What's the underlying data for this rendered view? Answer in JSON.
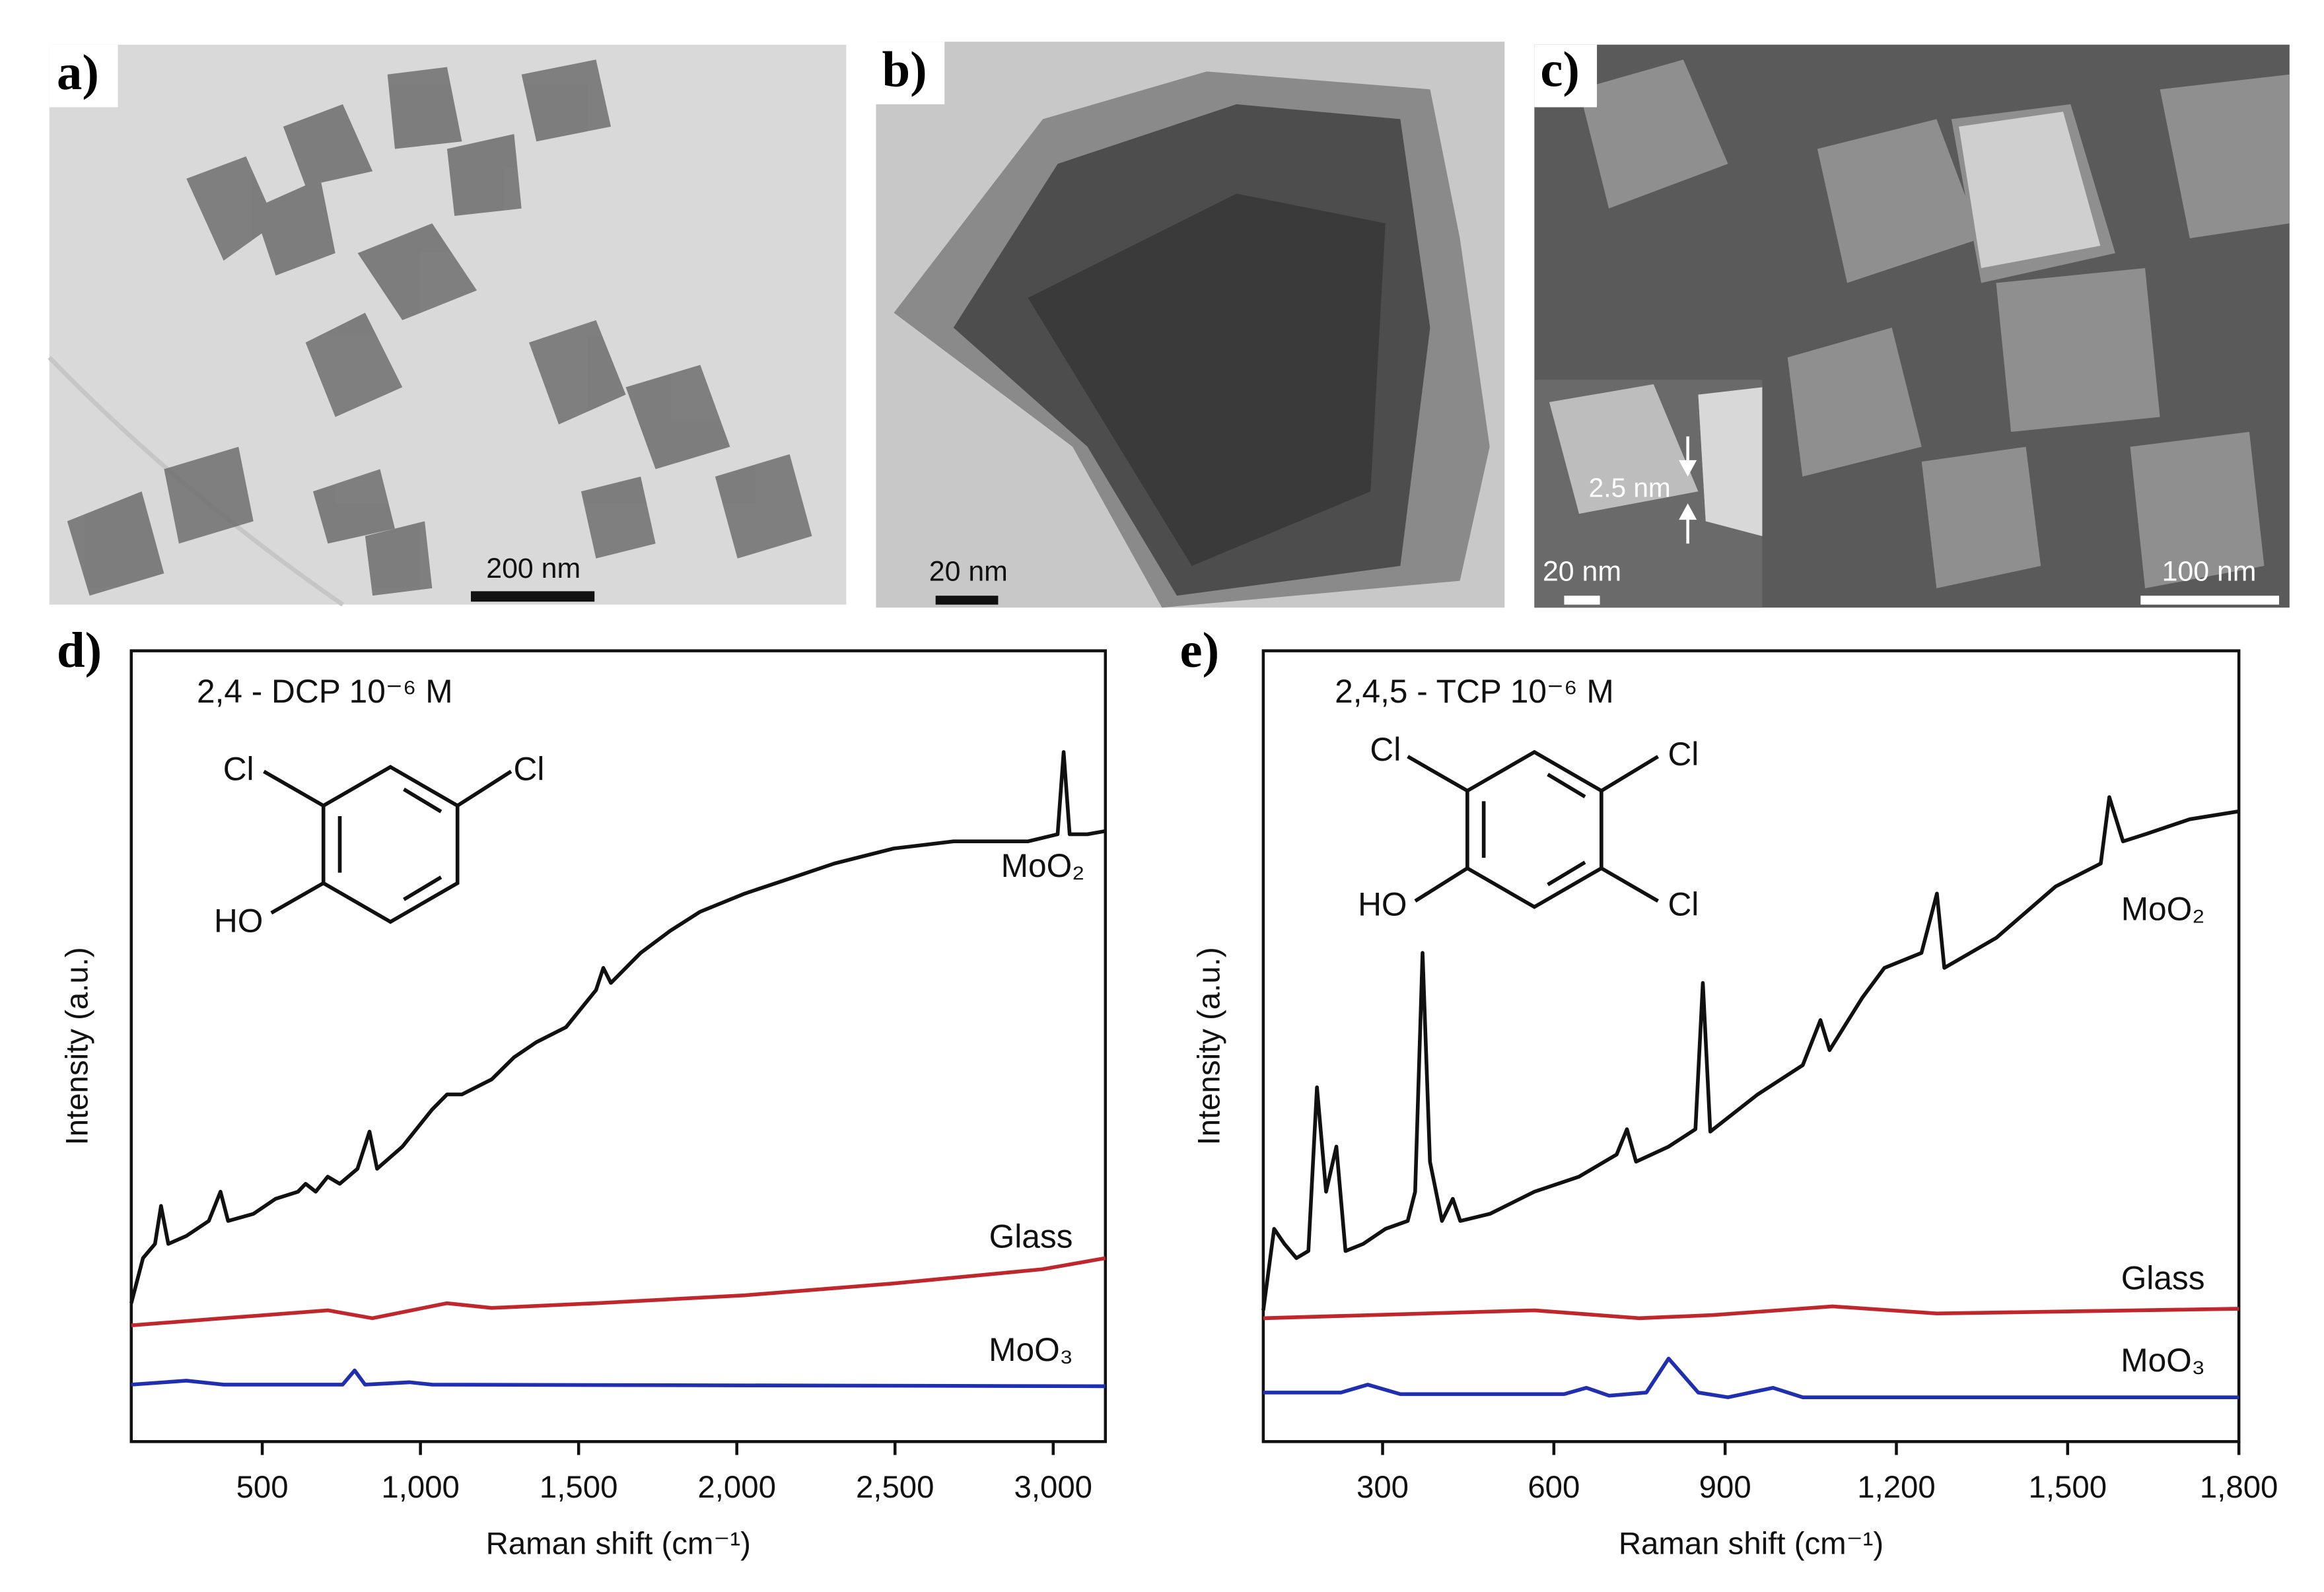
{
  "panels": [
    {
      "label": "a)",
      "scale_bar": "200 nm"
    },
    {
      "label": "b)",
      "scale_bar": "20 nm"
    },
    {
      "label": "c)",
      "scale_bar": "100 nm",
      "inset_scale_bar": "20 nm",
      "inset_annotation": "2.5 nm"
    }
  ],
  "chart_data": [
    {
      "type": "line",
      "label": "d)",
      "annotation": "2,4 - DCP 10⁻⁶ M",
      "structure_labels": [
        "Cl",
        "Cl",
        "HO"
      ],
      "x_label": "Raman shift (cm⁻¹)",
      "y_label": "Intensity (a.u.)",
      "xlim": [
        86,
        3165
      ],
      "ylim": [
        0,
        100
      ],
      "xticks": [
        500,
        {
          "value": 1000,
          "label": "1,000"
        },
        {
          "value": 1500,
          "label": "1,500"
        },
        {
          "value": 2000,
          "label": "2,000"
        },
        {
          "value": 2500,
          "label": "2,500"
        },
        {
          "value": 3000,
          "label": "3,000"
        }
      ],
      "series": [
        {
          "name": "MoO₂",
          "color": "#111111",
          "x": [
            86,
            123,
            161,
            180,
            203,
            260,
            331,
            368,
            392,
            472,
            542,
            613,
            637,
            669,
            707,
            745,
            801,
            839,
            863,
            943,
            1037,
            1084,
            1131,
            1225,
            1296,
            1366,
            1460,
            1555,
            1578,
            1602,
            1696,
            1790,
            1884,
            2025,
            2167,
            2308,
            2496,
            2685,
            2920,
            3014,
            3033,
            3052,
            3108,
            3165
          ],
          "values": [
            17.5,
            23.2,
            25,
            29.8,
            25,
            26,
            27.9,
            31.6,
            27.9,
            28.8,
            30.7,
            31.6,
            32.6,
            31.6,
            33.5,
            32.6,
            34.5,
            39.2,
            34.5,
            37.3,
            42,
            43.9,
            43.9,
            45.8,
            48.6,
            50.5,
            52.4,
            57.1,
            59.9,
            58,
            61.8,
            64.6,
            67,
            69.3,
            71.2,
            73.1,
            75,
            75.9,
            75.9,
            76.8,
            87.2,
            76.8,
            76.8,
            77.2
          ]
        },
        {
          "name": "Glass",
          "color": "#c0272d",
          "x": [
            86,
            378,
            707,
            848,
            1084,
            1225,
            1555,
            2025,
            2496,
            2967,
            3165
          ],
          "values": [
            14.7,
            15.6,
            16.6,
            15.6,
            17.5,
            16.9,
            17.5,
            18.5,
            20,
            21.8,
            23.2
          ]
        },
        {
          "name": "MoO₃",
          "color": "#1f2fb0",
          "x": [
            86,
            260,
            378,
            754,
            792,
            825,
            966,
            1037,
            3165
          ],
          "values": [
            7.2,
            7.7,
            7.2,
            7.2,
            9,
            7.2,
            7.5,
            7.2,
            7
          ]
        }
      ]
    },
    {
      "type": "line",
      "label": "e)",
      "annotation": "2,4,5 - TCP 10⁻⁶ M",
      "structure_labels": [
        "Cl",
        "Cl",
        "HO",
        "Cl"
      ],
      "x_label": "Raman shift (cm⁻¹)",
      "y_label": "Intensity (a.u.)",
      "xlim": [
        91,
        1800
      ],
      "ylim": [
        0,
        100
      ],
      "xticks": [
        300,
        600,
        900,
        {
          "value": 1200,
          "label": "1,200"
        },
        {
          "value": 1500,
          "label": "1,500"
        },
        {
          "value": 1800,
          "label": "1,800"
        }
      ],
      "series": [
        {
          "name": "MoO₂",
          "color": "#111111",
          "x": [
            91,
            110,
            128,
            149,
            170,
            185,
            201,
            219,
            235,
            266,
            305,
            344,
            357,
            370,
            383,
            404,
            423,
            436,
            488,
            566,
            644,
            710,
            728,
            744,
            801,
            848,
            861,
            874,
            957,
            1036,
            1067,
            1083,
            1140,
            1179,
            1244,
            1271,
            1284,
            1375,
            1479,
            1558,
            1573,
            1597,
            1636,
            1714,
            1800
          ],
          "values": [
            16.6,
            26.9,
            25,
            23.2,
            24.1,
            44.8,
            31.6,
            37.3,
            24.1,
            25,
            26.9,
            27.9,
            31.6,
            61.8,
            35.4,
            27.9,
            30.7,
            27.9,
            28.8,
            31.6,
            33.5,
            36.3,
            39.5,
            35.4,
            37.3,
            39.5,
            58,
            39.2,
            43.9,
            47.6,
            53.3,
            49.5,
            56.1,
            59.9,
            61.8,
            69.3,
            59.9,
            63.7,
            70.2,
            73.1,
            81.5,
            75.9,
            76.8,
            78.7,
            79.7
          ]
        },
        {
          "name": "Glass",
          "color": "#c0272d",
          "x": [
            91,
            566,
            749,
            879,
            1088,
            1271,
            1800
          ],
          "values": [
            15.6,
            16.6,
            15.6,
            16,
            17.1,
            16.2,
            16.8
          ]
        },
        {
          "name": "MoO₃",
          "color": "#1f2fb0",
          "x": [
            91,
            227,
            274,
            331,
            618,
            657,
            697,
            762,
            801,
            853,
            905,
            984,
            1036,
            1800
          ],
          "values": [
            6.2,
            6.2,
            7.2,
            6,
            6,
            6.8,
            5.8,
            6.2,
            10.5,
            6.2,
            5.6,
            6.8,
            5.6,
            5.6
          ]
        }
      ]
    }
  ]
}
